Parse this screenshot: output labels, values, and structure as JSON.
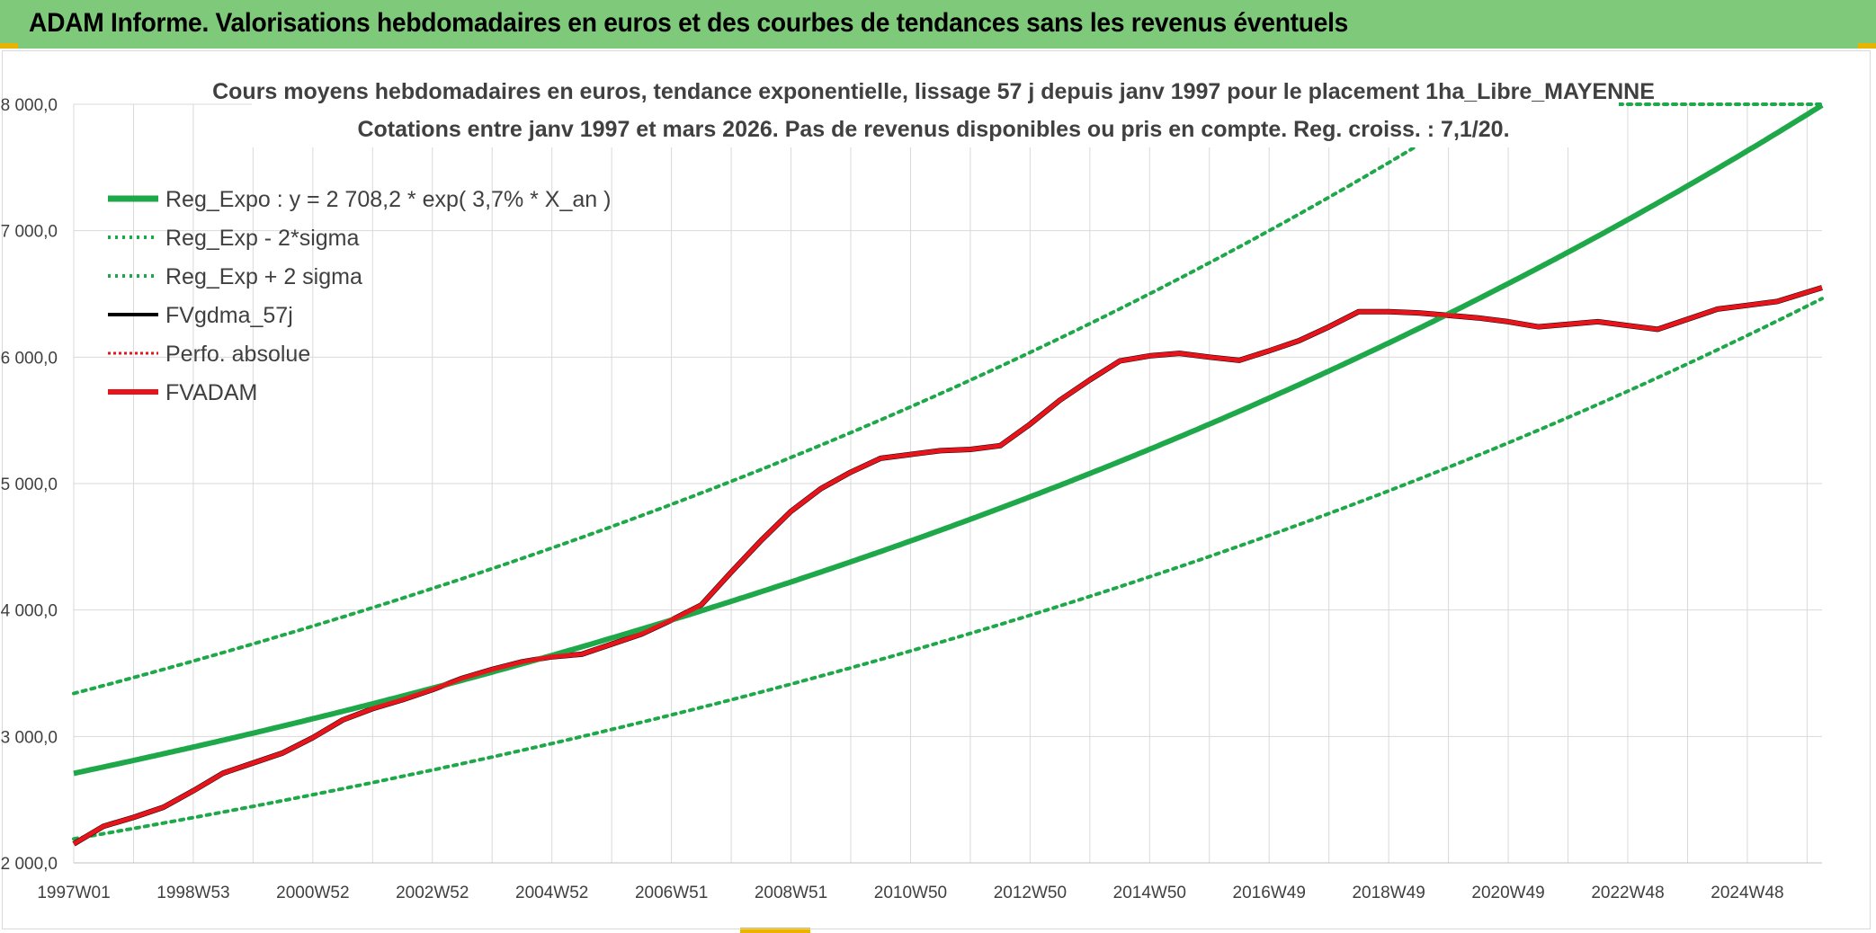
{
  "header": {
    "title": "ADAM Informe. Valorisations hebdomadaires en euros et des courbes de tendances sans les revenus éventuels"
  },
  "colors": {
    "banner": "#7ec97a",
    "reg_expo": "#1fa84a",
    "bands": "#1fa84a",
    "fvadam": "#e8141b",
    "fvgdma": "#000000",
    "perfo": "#e8141b"
  },
  "chart_data": {
    "type": "line",
    "title_line1": "Cours moyens hebdomadaires en euros, tendance exponentielle, lissage 57 j depuis janv 1997 pour le placement 1ha_Libre_MAYENNE",
    "title_line2": "Cotations entre janv 1997 et mars 2026. Pas de revenus disponibles ou pris en compte. Reg. croiss. : 7,1/20.",
    "ylim": [
      2000,
      8000
    ],
    "yticks": [
      "2 000,0",
      "3 000,0",
      "4 000,0",
      "5 000,0",
      "6 000,0",
      "7 000,0",
      "8 000,0"
    ],
    "xlim": [
      1997.0,
      2026.25
    ],
    "xticks": [
      {
        "label": "1997W01",
        "x": 1997.0
      },
      {
        "label": "1998W53",
        "x": 1999.0
      },
      {
        "label": "2000W52",
        "x": 2001.0
      },
      {
        "label": "2002W52",
        "x": 2003.0
      },
      {
        "label": "2004W52",
        "x": 2005.0
      },
      {
        "label": "2006W51",
        "x": 2007.0
      },
      {
        "label": "2008W51",
        "x": 2009.0
      },
      {
        "label": "2010W50",
        "x": 2011.0
      },
      {
        "label": "2012W50",
        "x": 2013.0
      },
      {
        "label": "2014W50",
        "x": 2015.0
      },
      {
        "label": "2016W49",
        "x": 2017.0
      },
      {
        "label": "2018W49",
        "x": 2019.0
      },
      {
        "label": "2020W49",
        "x": 2021.0
      },
      {
        "label": "2022W48",
        "x": 2023.0
      },
      {
        "label": "2024W48",
        "x": 2025.0
      }
    ],
    "legend": [
      {
        "label": "Reg_Expo : y = 2 708,2 * exp( 3,7% *  X_an )",
        "key": "reg_expo",
        "style": "solid-thick"
      },
      {
        "label": "Reg_Exp - 2*sigma",
        "key": "lower",
        "style": "dotted-green"
      },
      {
        "label": "Reg_Exp + 2 sigma",
        "key": "upper",
        "style": "dotted-green"
      },
      {
        "label": "FVgdma_57j",
        "key": "fvgdma",
        "style": "solid-black"
      },
      {
        "label": "Perfo. absolue",
        "key": "perfo",
        "style": "dotted-red"
      },
      {
        "label": "FVADAM",
        "key": "fvadam",
        "style": "solid-red"
      }
    ],
    "reg_expo": {
      "a": 2708.2,
      "rate": 0.037,
      "x0": 1997.0
    },
    "lower_band": {
      "a": 2190,
      "rate": 0.037,
      "x0": 1997.0
    },
    "upper_band": {
      "a": 3340,
      "rate": 0.037,
      "x0": 1997.0,
      "cap": 8000
    },
    "fvadam": [
      [
        1997.0,
        2150
      ],
      [
        1997.5,
        2290
      ],
      [
        1998.0,
        2360
      ],
      [
        1998.5,
        2440
      ],
      [
        1999.0,
        2570
      ],
      [
        1999.5,
        2710
      ],
      [
        2000.0,
        2790
      ],
      [
        2000.5,
        2870
      ],
      [
        2001.0,
        2990
      ],
      [
        2001.5,
        3130
      ],
      [
        2002.0,
        3220
      ],
      [
        2002.5,
        3290
      ],
      [
        2003.0,
        3370
      ],
      [
        2003.5,
        3460
      ],
      [
        2004.0,
        3530
      ],
      [
        2004.5,
        3590
      ],
      [
        2005.0,
        3630
      ],
      [
        2005.5,
        3650
      ],
      [
        2006.0,
        3730
      ],
      [
        2006.5,
        3810
      ],
      [
        2007.0,
        3920
      ],
      [
        2007.5,
        4040
      ],
      [
        2008.0,
        4300
      ],
      [
        2008.5,
        4550
      ],
      [
        2009.0,
        4780
      ],
      [
        2009.5,
        4960
      ],
      [
        2010.0,
        5090
      ],
      [
        2010.5,
        5200
      ],
      [
        2011.0,
        5230
      ],
      [
        2011.5,
        5260
      ],
      [
        2012.0,
        5270
      ],
      [
        2012.5,
        5300
      ],
      [
        2013.0,
        5470
      ],
      [
        2013.5,
        5660
      ],
      [
        2014.0,
        5820
      ],
      [
        2014.5,
        5970
      ],
      [
        2015.0,
        6010
      ],
      [
        2015.5,
        6030
      ],
      [
        2016.0,
        6000
      ],
      [
        2016.5,
        5975
      ],
      [
        2017.0,
        6050
      ],
      [
        2017.5,
        6130
      ],
      [
        2018.0,
        6240
      ],
      [
        2018.5,
        6360
      ],
      [
        2019.0,
        6360
      ],
      [
        2019.5,
        6350
      ],
      [
        2020.0,
        6330
      ],
      [
        2020.5,
        6310
      ],
      [
        2021.0,
        6280
      ],
      [
        2021.5,
        6240
      ],
      [
        2022.0,
        6260
      ],
      [
        2022.5,
        6280
      ],
      [
        2023.0,
        6250
      ],
      [
        2023.5,
        6220
      ],
      [
        2024.0,
        6300
      ],
      [
        2024.5,
        6380
      ],
      [
        2025.0,
        6410
      ],
      [
        2025.5,
        6440
      ],
      [
        2026.25,
        6550
      ]
    ]
  }
}
